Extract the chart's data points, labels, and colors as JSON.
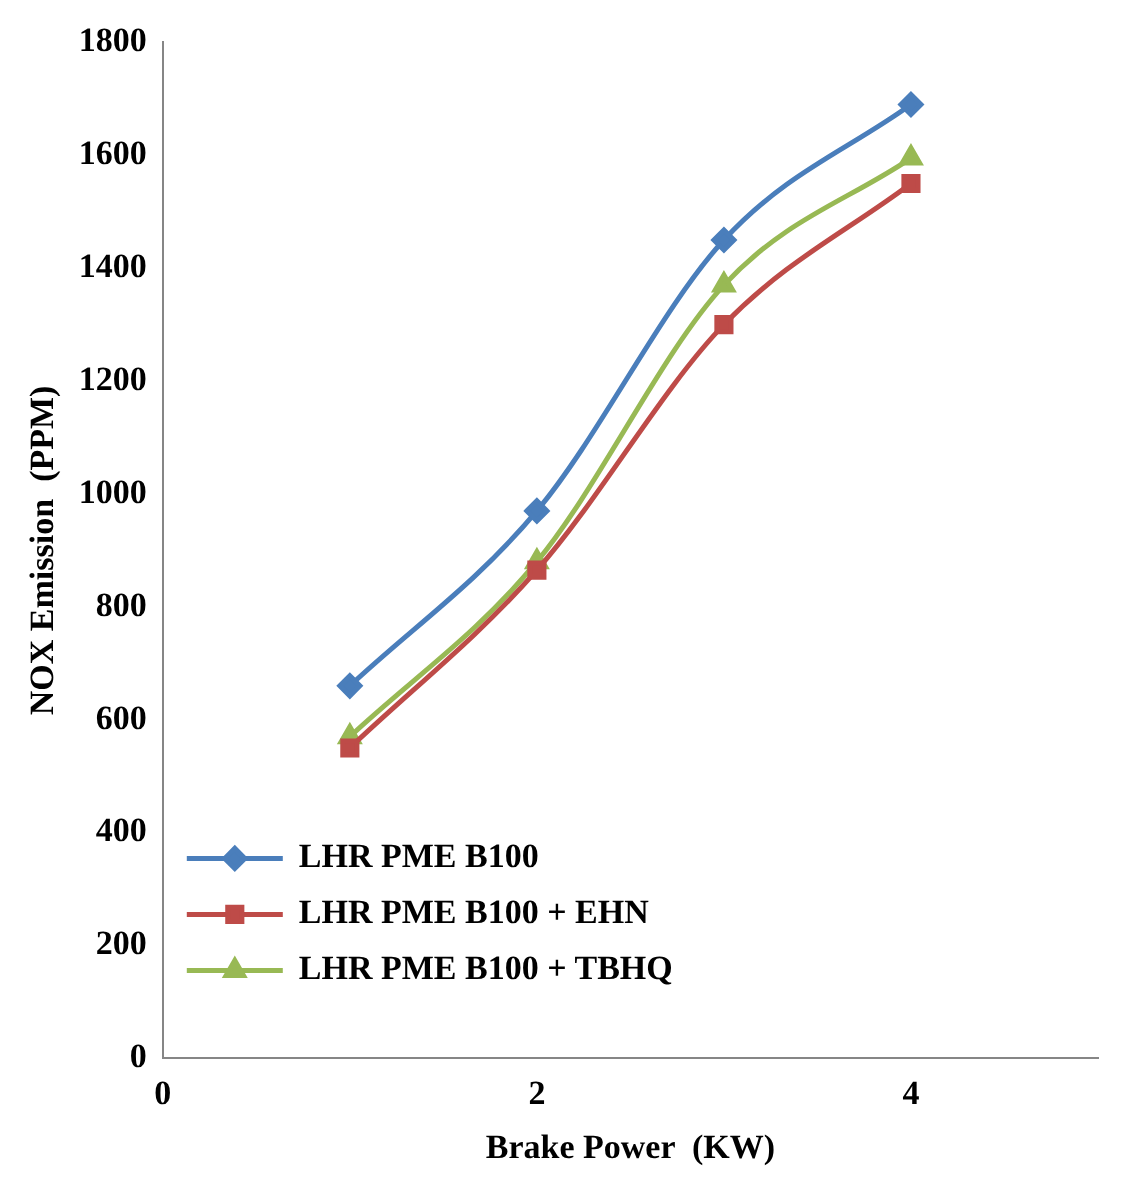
{
  "chart_data": {
    "type": "line",
    "xlabel": "Brake Power  (KW)",
    "ylabel": "NOX Emission  (PPM)",
    "x": [
      1,
      2,
      3,
      4
    ],
    "series": [
      {
        "name": "LHR PME B100",
        "color": "#4a7ebb",
        "values": [
          660,
          970,
          1450,
          1690
        ],
        "marker": "diamond"
      },
      {
        "name": "LHR PME B100 + EHN",
        "color": "#be4b48",
        "values": [
          550,
          865,
          1300,
          1550
        ],
        "marker": "square"
      },
      {
        "name": "LHR PME B100 + TBHQ",
        "color": "#98b954",
        "values": [
          570,
          880,
          1370,
          1595
        ],
        "marker": "triangle"
      }
    ],
    "xlim": [
      0,
      5
    ],
    "xticks": [
      0,
      2,
      4
    ],
    "ylim": [
      0,
      1800
    ],
    "yticks": [
      0,
      200,
      400,
      600,
      800,
      1000,
      1200,
      1400,
      1600,
      1800
    ],
    "grid": false,
    "legend": "bottom",
    "line_style": "solid"
  }
}
